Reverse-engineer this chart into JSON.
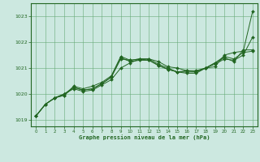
{
  "xlabel": "Graphe pression niveau de la mer (hPa)",
  "ylim": [
    1018.75,
    1023.5
  ],
  "xlim": [
    -0.5,
    23.5
  ],
  "yticks": [
    1019,
    1020,
    1021,
    1022,
    1023
  ],
  "xticks": [
    0,
    1,
    2,
    3,
    4,
    5,
    6,
    7,
    8,
    9,
    10,
    11,
    12,
    13,
    14,
    15,
    16,
    17,
    18,
    19,
    20,
    21,
    22,
    23
  ],
  "background_color": "#cce8e0",
  "grid_color": "#66aa77",
  "line_color": "#226622",
  "series": [
    {
      "x": [
        0,
        1,
        2,
        3,
        4,
        5,
        6,
        7,
        8,
        9,
        10,
        11,
        12,
        13,
        14,
        15,
        16,
        17,
        18,
        19,
        20,
        21,
        22,
        23
      ],
      "y": [
        1019.15,
        1019.6,
        1019.85,
        1019.95,
        1020.3,
        1020.2,
        1020.3,
        1020.45,
        1020.7,
        1021.45,
        1021.3,
        1021.35,
        1021.35,
        1021.25,
        1021.05,
        1021.0,
        1020.9,
        1020.9,
        1021.0,
        1021.05,
        1021.5,
        1021.6,
        1021.65,
        1023.2
      ]
    },
    {
      "x": [
        0,
        1,
        2,
        3,
        4,
        5,
        6,
        7,
        8,
        9,
        10,
        11,
        12,
        13,
        14,
        15,
        16,
        17,
        18,
        19,
        20,
        21,
        22,
        23
      ],
      "y": [
        1019.15,
        1019.6,
        1019.85,
        1019.95,
        1020.25,
        1020.15,
        1020.2,
        1020.4,
        1020.65,
        1021.4,
        1021.25,
        1021.3,
        1021.3,
        1021.1,
        1020.95,
        1020.85,
        1020.85,
        1020.85,
        1021.0,
        1021.2,
        1021.4,
        1021.25,
        1021.7,
        1021.7
      ]
    },
    {
      "x": [
        0,
        1,
        2,
        3,
        4,
        5,
        6,
        7,
        8,
        9,
        10,
        11,
        12,
        13,
        14,
        15,
        16,
        17,
        18,
        19,
        20,
        21,
        22,
        23
      ],
      "y": [
        1019.15,
        1019.6,
        1019.85,
        1020.0,
        1020.2,
        1020.1,
        1020.15,
        1020.35,
        1020.55,
        1021.0,
        1021.2,
        1021.35,
        1021.35,
        1021.15,
        1021.0,
        1020.85,
        1020.8,
        1020.8,
        1021.0,
        1021.15,
        1021.35,
        1021.3,
        1021.5,
        1022.2
      ]
    },
    {
      "x": [
        0,
        1,
        2,
        3,
        4,
        5,
        6,
        7,
        8,
        9,
        10,
        11,
        12,
        13,
        14,
        15,
        16,
        17,
        18,
        19,
        20,
        21,
        22,
        23
      ],
      "y": [
        1019.15,
        1019.6,
        1019.85,
        1020.0,
        1020.25,
        1020.15,
        1020.2,
        1020.4,
        1020.65,
        1021.35,
        1021.3,
        1021.35,
        1021.3,
        1021.1,
        1020.95,
        1020.85,
        1020.9,
        1020.85,
        1021.0,
        1021.2,
        1021.45,
        1021.35,
        1021.6,
        1021.65
      ]
    }
  ]
}
